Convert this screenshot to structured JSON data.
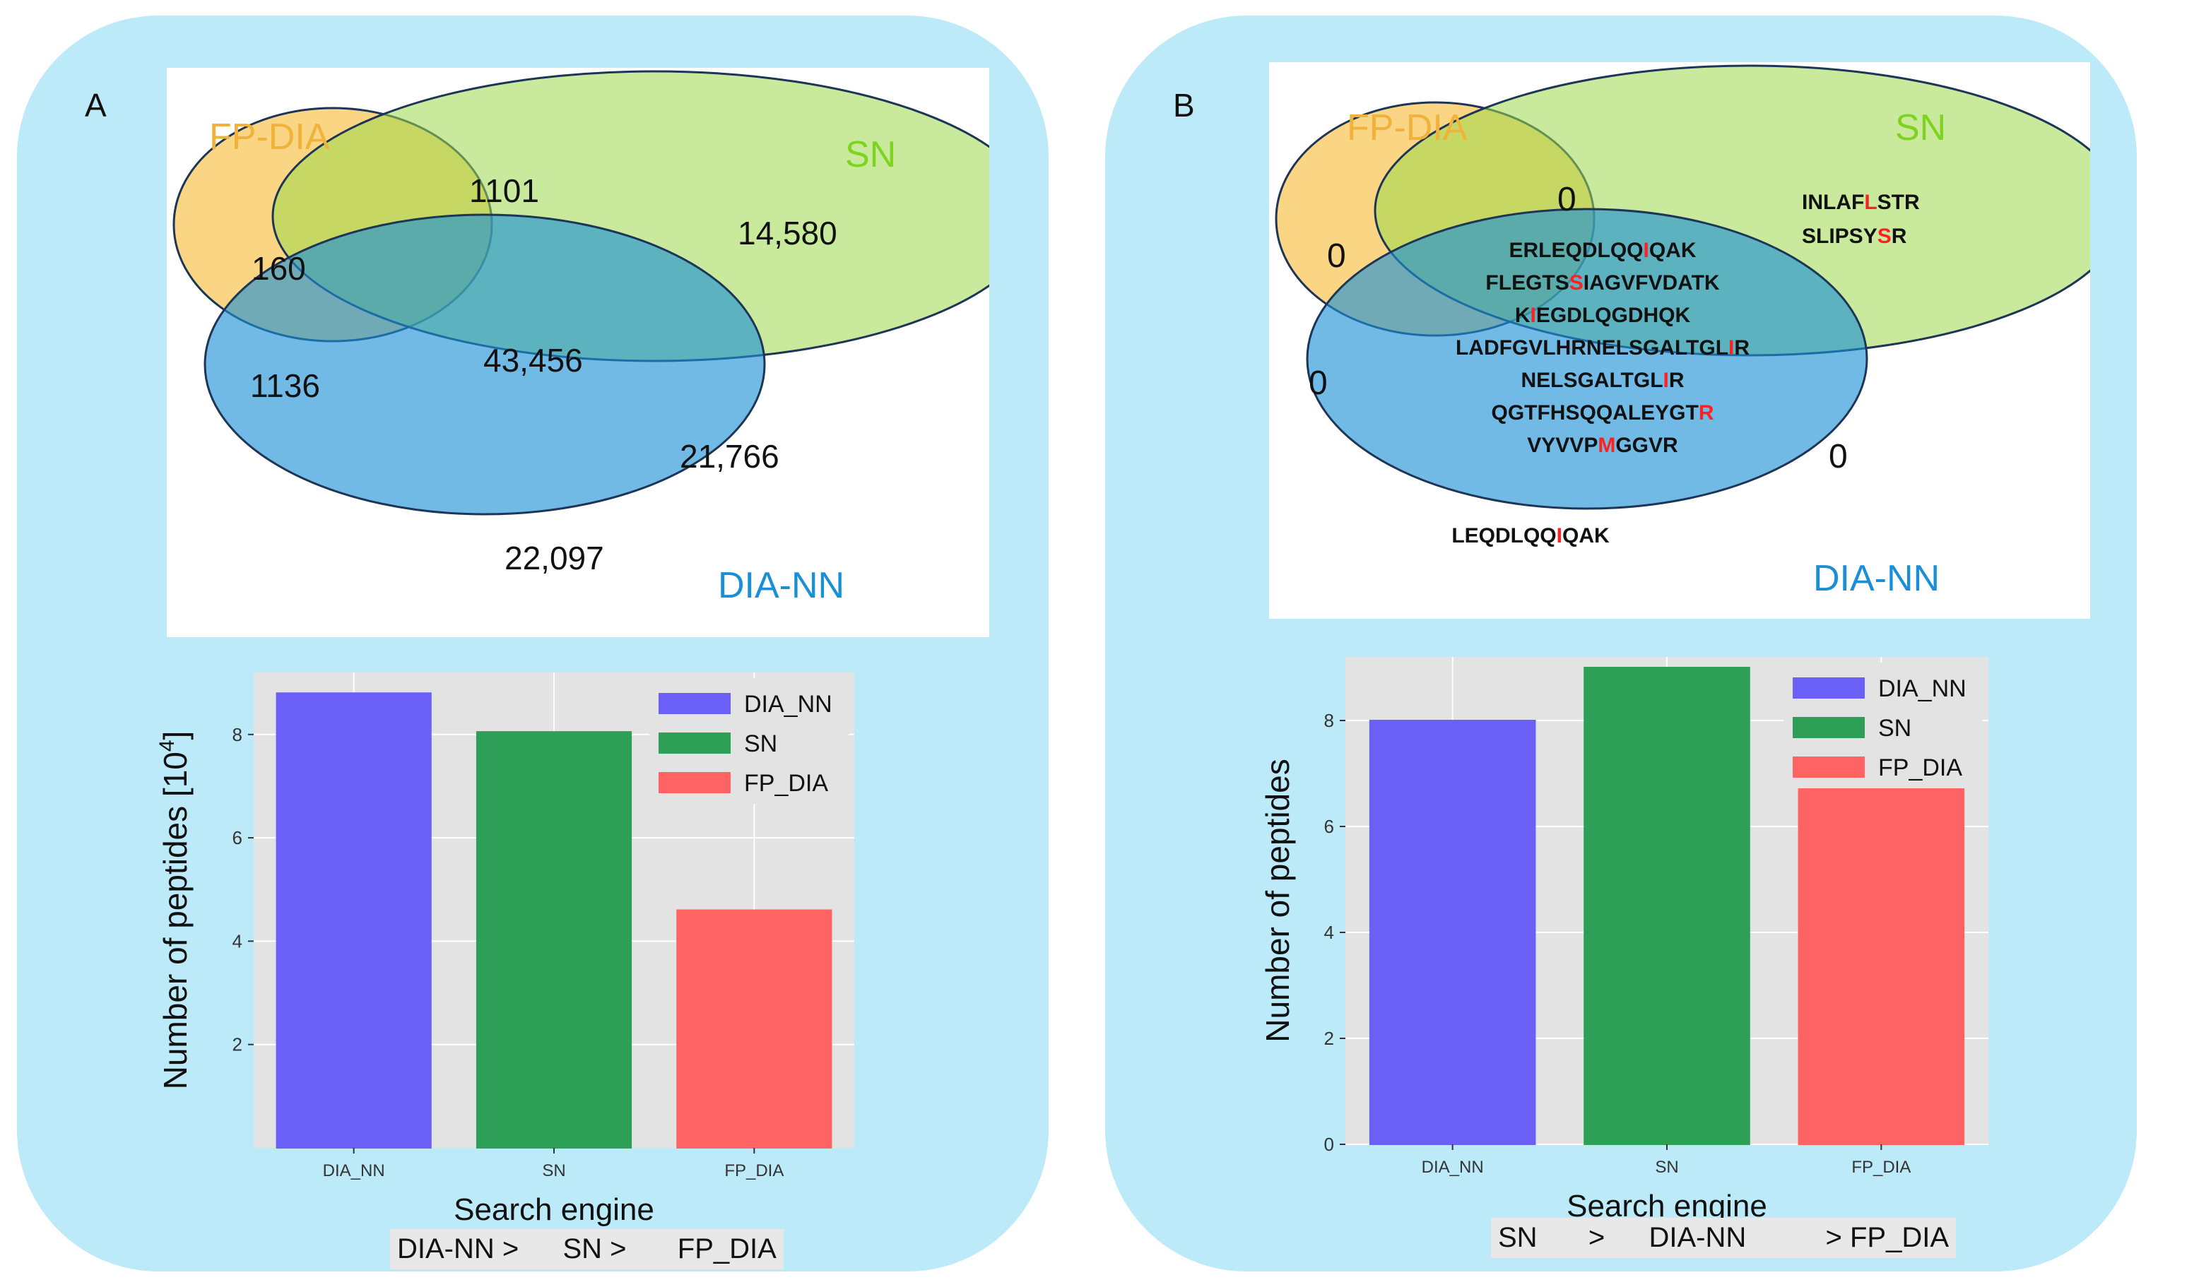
{
  "panels": [
    {
      "letter": "A",
      "venn": {
        "sets": [
          {
            "name": "FP-DIA",
            "color": "#f0b23a"
          },
          {
            "name": "SN",
            "color": "#7ed321"
          },
          {
            "name": "DIA-NN",
            "color": "#1b8fd6"
          }
        ],
        "regions": [
          {
            "key": "fp_sn",
            "label": "1101"
          },
          {
            "key": "sn",
            "label": "14,580"
          },
          {
            "key": "fp",
            "label": "160"
          },
          {
            "key": "all",
            "label": "43,456"
          },
          {
            "key": "fp_dia",
            "label": "1136"
          },
          {
            "key": "sn_dia",
            "label": "21,766"
          },
          {
            "key": "dia",
            "label": "22,097"
          }
        ]
      },
      "chart": {
        "type": "bar",
        "categories": [
          "DIA_NN",
          "SN",
          "FP_DIA"
        ],
        "values": [
          8.8,
          8.05,
          4.6
        ],
        "colors": [
          "#6a60f7",
          "#2e9f57",
          "#ff6363"
        ],
        "legend": [
          "DIA_NN",
          "SN",
          "FP_DIA"
        ],
        "ylabel_main": "Number of peptides [10",
        "ylabel_sup": "4",
        "ylabel_end": "]",
        "xlabel": "Search engine",
        "ylim": [
          0,
          9.2
        ],
        "yticks": [
          "2",
          "4",
          "6",
          "8"
        ],
        "ytick_values": [
          2,
          4,
          6,
          8
        ]
      },
      "ranking": [
        "DIA-NN  >",
        "SN >",
        "FP_DIA"
      ]
    },
    {
      "letter": "B",
      "venn": {
        "sets": [
          {
            "name": "FP-DIA",
            "color": "#f0b23a"
          },
          {
            "name": "SN",
            "color": "#7ed321"
          },
          {
            "name": "DIA-NN",
            "color": "#1b8fd6"
          }
        ],
        "regions": [
          {
            "key": "fp_sn",
            "label": "0"
          },
          {
            "key": "fp",
            "label": "0"
          },
          {
            "key": "fp_dia",
            "label": "0"
          },
          {
            "key": "sn_dia",
            "label": "0"
          }
        ],
        "sn_only": [
          {
            "pre": "INLAF",
            "hl": "L",
            "post": "STR"
          },
          {
            "pre": "SLIPSY",
            "hl": "S",
            "post": "R"
          }
        ],
        "center": [
          {
            "pre": "ERLEQDLQQ",
            "hl": "I",
            "post": "QAK"
          },
          {
            "pre": "FLEGTS",
            "hl": "S",
            "post": "IAGVFVDATK"
          },
          {
            "pre": "K",
            "hl": "I",
            "post": "EGDLQGDHQK"
          },
          {
            "pre": "LADFGVLHRNELSGALTGL",
            "hl": "I",
            "post": "R"
          },
          {
            "pre": "NELSGALTGL",
            "hl": "I",
            "post": "R"
          },
          {
            "pre": "QGTFHSQQALEYGT",
            "hl": "R",
            "post": ""
          },
          {
            "pre": "VYVVP",
            "hl": "M",
            "post": "GGVR"
          }
        ],
        "dia_only": [
          {
            "pre": "LEQDLQQ",
            "hl": "I",
            "post": "QAK"
          }
        ]
      },
      "chart": {
        "type": "bar",
        "categories": [
          "DIA_NN",
          "SN",
          "FP_DIA"
        ],
        "values": [
          8,
          9,
          7
        ],
        "colors": [
          "#6a60f7",
          "#2e9f57",
          "#ff6363"
        ],
        "legend": [
          "DIA_NN",
          "SN",
          "FP_DIA"
        ],
        "ylabel_main": "Number of peptides",
        "xlabel": "Search engine",
        "ylim": [
          0,
          9.2
        ],
        "yticks": [
          "0",
          "2",
          "4",
          "6",
          "8"
        ],
        "ytick_values": [
          0,
          2,
          4,
          6,
          8
        ]
      },
      "ranking": [
        "SN",
        ">",
        "DIA-NN",
        ">",
        "FP_DIA"
      ]
    }
  ],
  "chart_data": [
    {
      "type": "bar",
      "title": "",
      "categories": [
        "DIA_NN",
        "SN",
        "FP_DIA"
      ],
      "values": [
        8.8,
        8.05,
        4.6
      ],
      "xlabel": "Search engine",
      "ylabel": "Number of peptides [10^4]",
      "ylim": [
        0,
        9.2
      ]
    },
    {
      "type": "bar",
      "title": "",
      "categories": [
        "DIA_NN",
        "SN",
        "FP_DIA"
      ],
      "values": [
        8,
        9,
        7
      ],
      "xlabel": "Search engine",
      "ylabel": "Number of peptides",
      "ylim": [
        0,
        9.2
      ]
    }
  ]
}
